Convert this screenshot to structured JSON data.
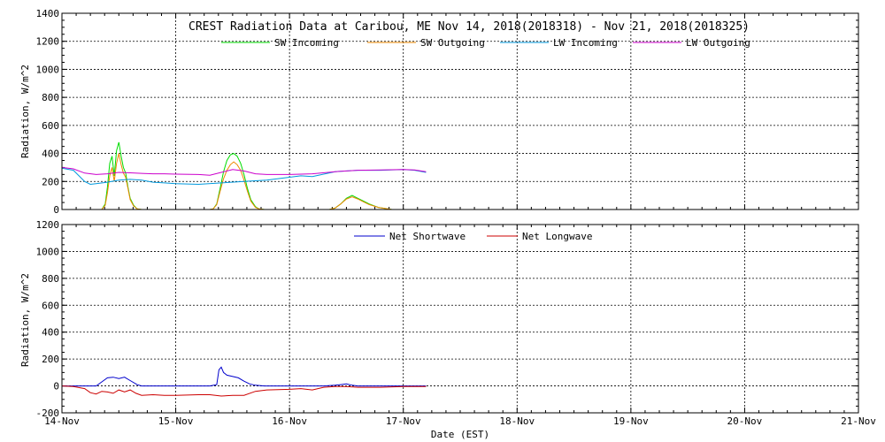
{
  "chart_data": [
    {
      "type": "line",
      "title": "CREST Radiation Data at Caribou, ME   Nov 14, 2018(2018318) - Nov 21, 2018(2018325)",
      "ylabel": "Radiation, W/m^2",
      "xlabel": "",
      "xlim": [
        0,
        7
      ],
      "ylim": [
        0,
        1400
      ],
      "yticks": [
        0,
        200,
        400,
        600,
        800,
        1000,
        1200,
        1400
      ],
      "x_tick_labels": [],
      "grid": true,
      "legend_position": "top",
      "series": [
        {
          "name": "SW Incoming",
          "color": "#00dd00",
          "x": [
            0.3,
            0.35,
            0.38,
            0.4,
            0.42,
            0.44,
            0.46,
            0.48,
            0.5,
            0.52,
            0.54,
            0.56,
            0.58,
            0.6,
            0.63,
            0.66,
            0.7,
            0.8,
            1.0,
            1.2,
            1.3,
            1.33,
            1.36,
            1.39,
            1.42,
            1.45,
            1.48,
            1.51,
            1.54,
            1.57,
            1.6,
            1.63,
            1.66,
            1.7,
            1.73,
            1.78,
            2.0,
            2.2,
            2.35,
            2.4,
            2.45,
            2.5,
            2.55,
            2.6,
            2.65,
            2.7,
            2.78,
            2.9,
            3.0,
            3.2
          ],
          "values": [
            0,
            0,
            40,
            160,
            330,
            380,
            240,
            420,
            480,
            380,
            300,
            260,
            160,
            80,
            30,
            5,
            0,
            0,
            0,
            0,
            0,
            5,
            40,
            150,
            270,
            350,
            390,
            400,
            380,
            330,
            250,
            150,
            70,
            20,
            5,
            0,
            0,
            0,
            0,
            10,
            40,
            80,
            100,
            80,
            60,
            40,
            15,
            0,
            0,
            0
          ]
        },
        {
          "name": "SW Outgoing",
          "color": "#ee8800",
          "x": [
            0.3,
            0.35,
            0.38,
            0.4,
            0.42,
            0.44,
            0.46,
            0.48,
            0.5,
            0.52,
            0.54,
            0.56,
            0.58,
            0.6,
            0.63,
            0.66,
            0.7,
            0.8,
            1.0,
            1.2,
            1.3,
            1.33,
            1.36,
            1.39,
            1.42,
            1.45,
            1.48,
            1.51,
            1.54,
            1.57,
            1.6,
            1.63,
            1.66,
            1.7,
            1.73,
            1.78,
            2.0,
            2.2,
            2.35,
            2.4,
            2.45,
            2.5,
            2.55,
            2.6,
            2.65,
            2.7,
            2.78,
            2.9,
            3.0,
            3.2
          ],
          "values": [
            0,
            0,
            30,
            120,
            240,
            300,
            200,
            330,
            400,
            320,
            260,
            230,
            150,
            70,
            25,
            5,
            0,
            0,
            0,
            0,
            0,
            5,
            35,
            130,
            220,
            280,
            320,
            340,
            320,
            280,
            210,
            130,
            60,
            15,
            5,
            0,
            0,
            0,
            0,
            10,
            40,
            75,
            90,
            75,
            55,
            35,
            15,
            0,
            0,
            0
          ]
        },
        {
          "name": "LW Incoming",
          "color": "#0099dd",
          "x": [
            0,
            0.1,
            0.2,
            0.25,
            0.3,
            0.4,
            0.5,
            0.6,
            0.7,
            0.8,
            0.9,
            1.0,
            1.2,
            1.4,
            1.6,
            1.8,
            2.0,
            2.1,
            2.2,
            2.4,
            2.6,
            2.8,
            3.0,
            3.1,
            3.2
          ],
          "values": [
            295,
            280,
            200,
            180,
            185,
            195,
            210,
            215,
            210,
            195,
            190,
            185,
            180,
            190,
            200,
            210,
            230,
            240,
            235,
            270,
            280,
            280,
            285,
            280,
            265
          ]
        },
        {
          "name": "LW Outgoing",
          "color": "#cc00cc",
          "x": [
            0,
            0.1,
            0.2,
            0.3,
            0.4,
            0.5,
            0.6,
            0.7,
            0.8,
            0.9,
            1.0,
            1.2,
            1.3,
            1.4,
            1.5,
            1.6,
            1.7,
            1.8,
            2.0,
            2.2,
            2.4,
            2.6,
            2.8,
            3.0,
            3.1,
            3.2
          ],
          "values": [
            300,
            290,
            260,
            250,
            255,
            265,
            262,
            258,
            255,
            255,
            252,
            250,
            245,
            265,
            285,
            275,
            255,
            250,
            250,
            255,
            270,
            280,
            282,
            285,
            282,
            270
          ]
        }
      ]
    },
    {
      "type": "line",
      "title": "",
      "ylabel": "Radiation, W/m^2",
      "xlabel": "Date (EST)",
      "xlim": [
        0,
        7
      ],
      "ylim": [
        -200,
        1200
      ],
      "yticks": [
        -200,
        0,
        200,
        400,
        600,
        800,
        1000,
        1200
      ],
      "x_tick_labels": [
        "14-Nov",
        "15-Nov",
        "16-Nov",
        "17-Nov",
        "18-Nov",
        "19-Nov",
        "20-Nov",
        "21-Nov"
      ],
      "grid": true,
      "legend_position": "top",
      "series": [
        {
          "name": "Net Shortwave",
          "color": "#0000cc",
          "x": [
            0,
            0.3,
            0.35,
            0.4,
            0.45,
            0.5,
            0.55,
            0.6,
            0.66,
            0.7,
            1.0,
            1.3,
            1.36,
            1.38,
            1.4,
            1.42,
            1.45,
            1.5,
            1.55,
            1.6,
            1.65,
            1.7,
            1.78,
            2.0,
            2.3,
            2.4,
            2.45,
            2.5,
            2.55,
            2.6,
            2.8,
            3.0,
            3.2
          ],
          "values": [
            0,
            0,
            30,
            60,
            65,
            55,
            65,
            40,
            10,
            0,
            0,
            0,
            10,
            120,
            140,
            100,
            80,
            70,
            60,
            35,
            15,
            5,
            0,
            0,
            0,
            5,
            10,
            15,
            5,
            0,
            0,
            0,
            0
          ]
        },
        {
          "name": "Net Longwave",
          "color": "#cc0000",
          "x": [
            0,
            0.1,
            0.2,
            0.25,
            0.3,
            0.35,
            0.4,
            0.45,
            0.5,
            0.55,
            0.6,
            0.65,
            0.7,
            0.8,
            0.9,
            1.0,
            1.2,
            1.3,
            1.35,
            1.4,
            1.5,
            1.6,
            1.7,
            1.8,
            2.0,
            2.1,
            2.2,
            2.3,
            2.4,
            2.5,
            2.6,
            2.8,
            3.0,
            3.2
          ],
          "values": [
            0,
            -5,
            -20,
            -50,
            -60,
            -40,
            -45,
            -55,
            -30,
            -45,
            -30,
            -55,
            -70,
            -65,
            -70,
            -70,
            -65,
            -65,
            -70,
            -75,
            -70,
            -70,
            -40,
            -30,
            -25,
            -20,
            -30,
            -10,
            -5,
            -5,
            -10,
            -10,
            -5,
            -5
          ]
        }
      ]
    }
  ]
}
